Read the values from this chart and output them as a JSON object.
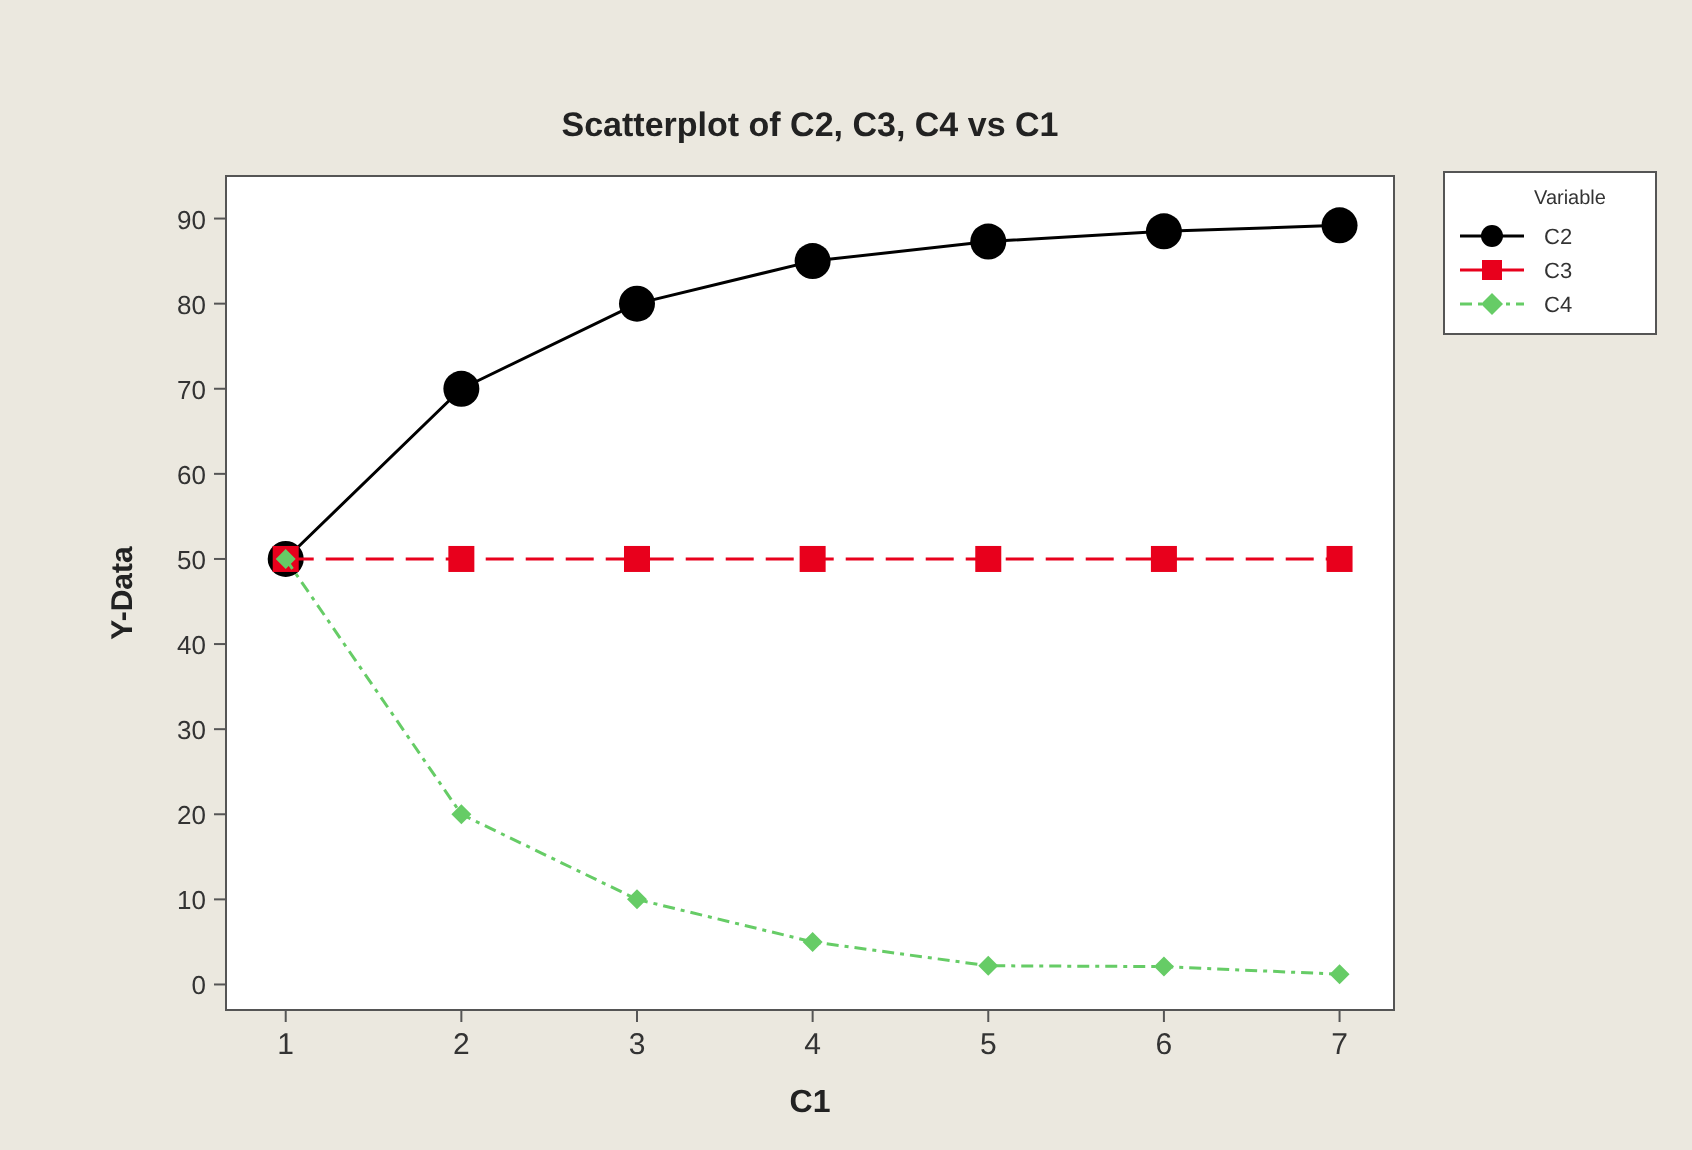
{
  "chart_data": {
    "type": "line",
    "title": "Scatterplot of C2, C3, C4 vs C1",
    "xlabel": "C1",
    "ylabel": "Y-Data",
    "legend_title": "Variable",
    "legend": "right",
    "grid": false,
    "x": [
      1,
      2,
      3,
      4,
      5,
      6,
      7
    ],
    "xlim": [
      0.66,
      7.31
    ],
    "xticks": [
      1,
      2,
      3,
      4,
      5,
      6,
      7
    ],
    "ylim": [
      -3,
      95
    ],
    "yticks": [
      0,
      10,
      20,
      30,
      40,
      50,
      60,
      70,
      80,
      90
    ],
    "series": [
      {
        "name": "C2",
        "color": "#000000",
        "marker": "circle",
        "line_style": "solid",
        "values": [
          50,
          70,
          80,
          85,
          87.3,
          88.5,
          89.2
        ]
      },
      {
        "name": "C3",
        "color": "#e8001c",
        "marker": "square",
        "line_style": "dashed",
        "values": [
          50,
          50,
          50,
          50,
          50,
          50,
          50
        ]
      },
      {
        "name": "C4",
        "color": "#66cc66",
        "marker": "diamond",
        "line_style": "dotted",
        "values": [
          50,
          20,
          10,
          5,
          2.2,
          2.1,
          1.2
        ]
      }
    ]
  }
}
